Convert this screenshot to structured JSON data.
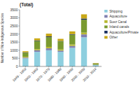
{
  "chart_data": {
    "type": "bar",
    "stacked": true,
    "title": "(Total)",
    "ylabel": "Number of Non-Indigenous Species",
    "categories": [
      "1949 - 1959",
      "1960 - 1969",
      "1970 - 1979",
      "1980 - 1989",
      "1990 - 1999",
      "2000 - 2009",
      "2010 - 2014"
    ],
    "series": [
      {
        "name": "Shipping",
        "color": "#8ecfdf",
        "values": [
          500,
          900,
          1000,
          900,
          1150,
          1800,
          80
        ]
      },
      {
        "name": "Aquaculture",
        "color": "#8080b0",
        "values": [
          50,
          100,
          120,
          80,
          120,
          180,
          15
        ]
      },
      {
        "name": "Suez Canal",
        "color": "#b8b830",
        "values": [
          50,
          70,
          90,
          70,
          90,
          110,
          12
        ]
      },
      {
        "name": "Inland canals",
        "color": "#7a9a30",
        "values": [
          250,
          500,
          600,
          500,
          600,
          800,
          65
        ]
      },
      {
        "name": "Aquaculture/Private",
        "color": "#1a3060",
        "values": [
          20,
          35,
          45,
          25,
          35,
          70,
          8
        ]
      },
      {
        "name": "Other",
        "color": "#c8a818",
        "values": [
          70,
          130,
          170,
          130,
          170,
          260,
          25
        ]
      }
    ],
    "ylim": [
      0,
      3500
    ],
    "yticks": [
      0,
      500,
      1000,
      1500,
      2000,
      2500,
      3000,
      3500
    ],
    "grid": false,
    "legend": "right"
  }
}
